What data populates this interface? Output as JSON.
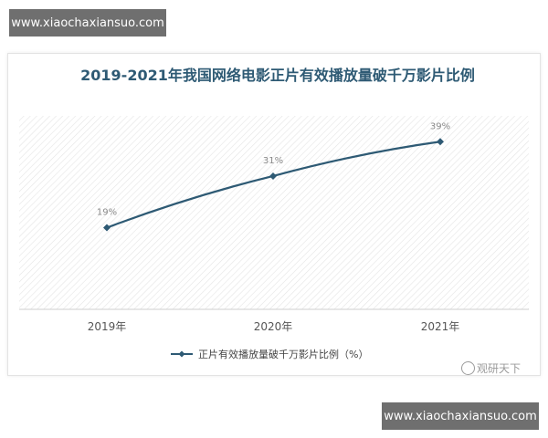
{
  "watermark_top": "www.xiaochaxiansuo.com",
  "watermark_bottom": "www.xiaochaxiansuo.com",
  "credit": "观研天下",
  "chart_data": {
    "type": "line",
    "title": "2019-2021年我国网络电影正片有效播放量破千万影片比例",
    "categories": [
      "2019年",
      "2020年",
      "2021年"
    ],
    "series": [
      {
        "name": "正片有效播放量破千万影片比例（%）",
        "values": [
          19,
          31,
          39
        ],
        "labels": [
          "19%",
          "31%",
          "39%"
        ]
      }
    ],
    "ylim": [
      0,
      45
    ],
    "grid": "hatched plot background",
    "legend": "bottom",
    "line_color": "#2e5a74"
  }
}
